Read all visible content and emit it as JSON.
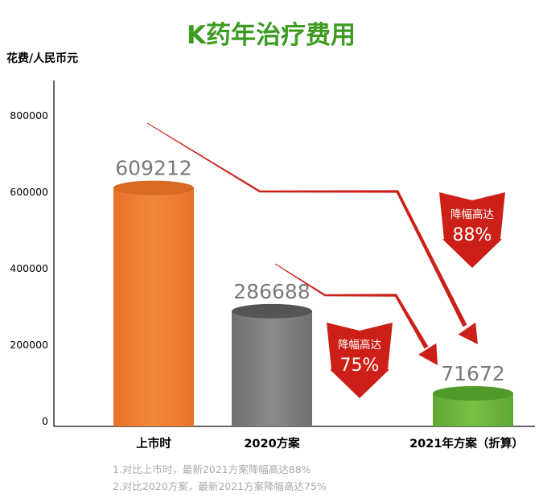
{
  "chart_data": {
    "type": "bar",
    "title": "K药年治疗费用",
    "ylabel": "花费/人民币元",
    "xlabel": "",
    "ylim": [
      0,
      800000
    ],
    "yticks": [
      0,
      200000,
      400000,
      600000,
      800000
    ],
    "categories": [
      "上市时",
      "2020方案",
      "2021年方案（折算）"
    ],
    "values": [
      609212,
      286688,
      71672
    ],
    "value_labels": [
      "609212",
      "286688",
      "71672"
    ],
    "colors": [
      "#ee7d2f",
      "#7f7f7f",
      "#6db33f"
    ],
    "top_colors": [
      "#d86a22",
      "#555555",
      "#4f9a2b"
    ],
    "title_color": "#3d9b22",
    "arrow_color": "#cc1f18",
    "grid": false,
    "annotations": [
      {
        "text": "降幅高达",
        "value": "88%",
        "from": "上市时",
        "to": "2021年方案（折算）"
      },
      {
        "text": "降幅高达",
        "value": "75%",
        "from": "2020方案",
        "to": "2021年方案（折算）"
      }
    ]
  },
  "footnotes": [
    "1.对比上市时，最新2021方案降幅高达88%",
    "2.对比2020方案，最新2021方案降幅高达75%"
  ]
}
